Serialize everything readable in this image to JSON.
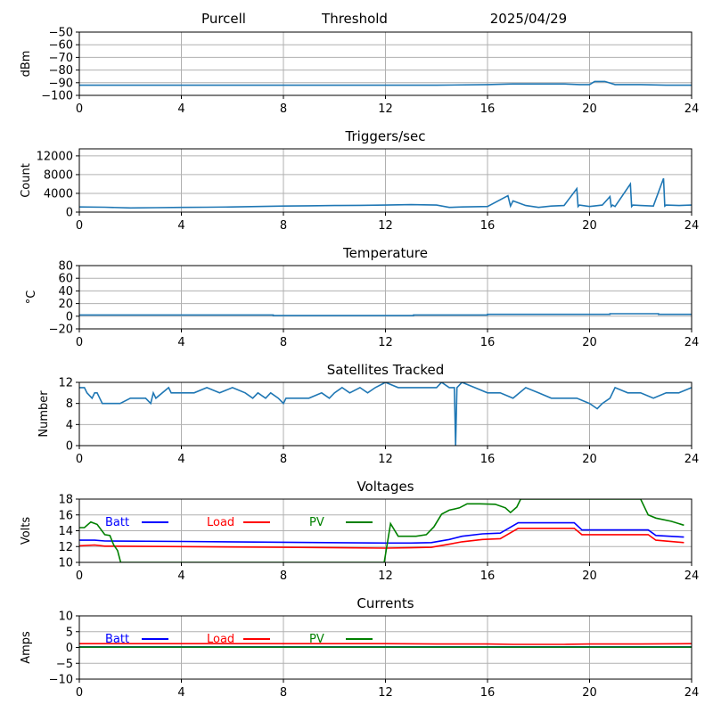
{
  "header": {
    "station": "Purcell",
    "mode": "Threshold",
    "date": "2025/04/29"
  },
  "colors": {
    "series": "#1f77b4",
    "batt": "#0000ff",
    "load": "#ff0000",
    "pv": "#008000",
    "grid": "#b0b0b0"
  },
  "chart_data": [
    {
      "id": "signal",
      "type": "line",
      "title": "",
      "ylabel": "dBm",
      "xlim": [
        0,
        24
      ],
      "xticks": [
        "0",
        "4",
        "8",
        "12",
        "16",
        "20",
        "24"
      ],
      "ylim": [
        -100,
        -50
      ],
      "yticks": [
        "−50",
        "−60",
        "−70",
        "−80",
        "−90",
        "−100"
      ],
      "yticks_values": [
        -50,
        -60,
        -70,
        -80,
        -90,
        -100
      ],
      "grid": true,
      "series": [
        {
          "name": "",
          "color": "#1f77b4",
          "x": [
            0,
            2,
            4,
            6,
            8,
            10,
            12,
            14,
            16,
            17,
            18,
            19,
            19.6,
            20,
            20.2,
            20.6,
            21,
            22,
            23,
            24
          ],
          "y": [
            -92,
            -92,
            -92,
            -92,
            -92,
            -92,
            -92,
            -92,
            -91.5,
            -91,
            -91,
            -91,
            -91.5,
            -91.5,
            -89,
            -89,
            -91.5,
            -91.5,
            -92,
            -92
          ]
        }
      ]
    },
    {
      "id": "triggers",
      "type": "line",
      "title": "Triggers/sec",
      "ylabel": "Count",
      "xlim": [
        0,
        24
      ],
      "xticks": [
        "0",
        "4",
        "8",
        "12",
        "16",
        "20",
        "24"
      ],
      "ylim": [
        0,
        13500
      ],
      "yticks": [
        "12000",
        "8000",
        "4000",
        "0"
      ],
      "yticks_values": [
        12000,
        8000,
        4000,
        0
      ],
      "grid": true,
      "series": [
        {
          "name": "",
          "color": "#1f77b4",
          "x": [
            0,
            1,
            2,
            3,
            4,
            5,
            6,
            7,
            8,
            9,
            10,
            11,
            12,
            13,
            14,
            14.5,
            15,
            16,
            16.8,
            16.9,
            17,
            17.5,
            18,
            18.5,
            19,
            19.5,
            19.55,
            19.6,
            20,
            20.5,
            20.8,
            20.85,
            20.9,
            21,
            21.6,
            21.65,
            21.7,
            22,
            22.5,
            22.9,
            22.95,
            23,
            23.5,
            24
          ],
          "y": [
            1100,
            1050,
            900,
            950,
            1000,
            1050,
            1100,
            1200,
            1300,
            1350,
            1400,
            1450,
            1500,
            1600,
            1500,
            1000,
            1100,
            1200,
            3500,
            1300,
            2400,
            1400,
            1000,
            1300,
            1400,
            5000,
            1200,
            1500,
            1200,
            1500,
            3300,
            1200,
            1500,
            1200,
            6000,
            1200,
            1500,
            1400,
            1300,
            7200,
            1300,
            1500,
            1400,
            1500
          ]
        }
      ]
    },
    {
      "id": "temperature",
      "type": "line",
      "title": "Temperature",
      "ylabel": "°C",
      "xlim": [
        0,
        24
      ],
      "xticks": [
        "0",
        "4",
        "8",
        "12",
        "16",
        "20",
        "24"
      ],
      "ylim": [
        -20,
        80
      ],
      "yticks": [
        "80",
        "60",
        "40",
        "20",
        "0",
        "−20"
      ],
      "yticks_values": [
        80,
        60,
        40,
        20,
        0,
        -20
      ],
      "grid": true,
      "series": [
        {
          "name": "",
          "color": "#1f77b4",
          "x": [
            0,
            7.6,
            7.6,
            13.1,
            13.1,
            16,
            16,
            20.8,
            20.8,
            22.7,
            22.7,
            24
          ],
          "y": [
            2,
            2,
            1,
            1,
            2,
            2,
            3,
            3,
            4,
            4,
            3,
            3
          ]
        }
      ]
    },
    {
      "id": "satellites",
      "type": "line",
      "title": "Satellites Tracked",
      "ylabel": "Number",
      "xlim": [
        0,
        24
      ],
      "xticks": [
        "0",
        "4",
        "8",
        "12",
        "16",
        "20",
        "24"
      ],
      "ylim": [
        0,
        12
      ],
      "yticks": [
        "12",
        "8",
        "4",
        "0"
      ],
      "yticks_values": [
        12,
        8,
        4,
        0
      ],
      "grid": true,
      "series": [
        {
          "name": "",
          "color": "#1f77b4",
          "x": [
            0,
            0.2,
            0.3,
            0.5,
            0.6,
            0.7,
            0.8,
            0.9,
            1.6,
            2.0,
            2.1,
            2.6,
            2.8,
            2.9,
            3.0,
            3.5,
            3.6,
            4.0,
            4.5,
            5.0,
            5.5,
            6.0,
            6.5,
            6.8,
            7.0,
            7.3,
            7.5,
            7.8,
            8.0,
            8.1,
            8.6,
            9.0,
            9.5,
            9.8,
            10.0,
            10.3,
            10.6,
            11.0,
            11.3,
            11.6,
            12.0,
            12.5,
            13.0,
            13.5,
            14.0,
            14.2,
            14.5,
            14.7,
            14.75,
            14.8,
            15.0,
            15.5,
            16.0,
            16.5,
            17.0,
            17.5,
            18.0,
            18.5,
            19.0,
            19.5,
            20.0,
            20.3,
            20.5,
            20.8,
            21.0,
            21.5,
            22.0,
            22.5,
            23.0,
            23.5,
            24.0
          ],
          "y": [
            11,
            11,
            10,
            9,
            10,
            10,
            9,
            8,
            8,
            9,
            9,
            9,
            8,
            10,
            9,
            11,
            10,
            10,
            10,
            11,
            10,
            11,
            10,
            9,
            10,
            9,
            10,
            9,
            8,
            9,
            9,
            9,
            10,
            9,
            10,
            11,
            10,
            11,
            10,
            11,
            12,
            11,
            11,
            11,
            11,
            12,
            11,
            11,
            0,
            11,
            12,
            11,
            10,
            10,
            9,
            11,
            10,
            9,
            9,
            9,
            8,
            7,
            8,
            9,
            11,
            10,
            10,
            9,
            10,
            10,
            11
          ]
        }
      ]
    },
    {
      "id": "voltages",
      "type": "line",
      "title": "Voltages",
      "ylabel": "Volts",
      "xlim": [
        0,
        24
      ],
      "xticks": [
        "0",
        "4",
        "8",
        "12",
        "16",
        "20",
        "24"
      ],
      "ylim": [
        10,
        18
      ],
      "yticks": [
        "18",
        "16",
        "14",
        "12",
        "10"
      ],
      "yticks_values": [
        18,
        16,
        14,
        12,
        10
      ],
      "grid": true,
      "legend": [
        {
          "label": "Batt",
          "color": "#0000ff"
        },
        {
          "label": "Load",
          "color": "#ff0000"
        },
        {
          "label": "PV",
          "color": "#008000"
        }
      ],
      "series": [
        {
          "name": "Batt",
          "color": "#0000ff",
          "x": [
            0,
            0.6,
            1.0,
            4,
            8,
            12,
            13,
            13.8,
            14.5,
            15,
            15.8,
            16.5,
            17.2,
            18,
            19.4,
            19.7,
            20.5,
            22.3,
            22.6,
            23.7
          ],
          "y": [
            12.8,
            12.8,
            12.7,
            12.65,
            12.55,
            12.45,
            12.45,
            12.5,
            12.9,
            13.3,
            13.6,
            13.7,
            15,
            15,
            15,
            14.1,
            14.1,
            14.1,
            13.4,
            13.2
          ]
        },
        {
          "name": "Load",
          "color": "#ff0000",
          "x": [
            0,
            0.6,
            1.0,
            4,
            8,
            12,
            13,
            13.8,
            14.5,
            15,
            15.8,
            16.5,
            17.2,
            18,
            19.4,
            19.7,
            20.5,
            22.3,
            22.6,
            23.7
          ],
          "y": [
            12.1,
            12.2,
            12.05,
            12.0,
            11.9,
            11.8,
            11.85,
            11.9,
            12.3,
            12.6,
            12.9,
            13.0,
            14.3,
            14.3,
            14.3,
            13.5,
            13.5,
            13.5,
            12.8,
            12.5
          ]
        },
        {
          "name": "PV",
          "color": "#008000",
          "x": [
            0,
            0.2,
            0.45,
            0.7,
            1.0,
            1.2,
            1.35,
            1.5,
            1.62,
            11.95,
            12.2,
            12.5,
            12.8,
            13.2,
            13.6,
            13.9,
            14.2,
            14.5,
            14.9,
            15.2,
            15.7,
            16.3,
            16.7,
            16.9,
            17.15,
            17.3,
            22.0,
            22.3,
            22.6,
            23.2,
            23.7
          ],
          "y": [
            14.4,
            14.4,
            15.1,
            14.8,
            13.5,
            13.4,
            12.2,
            11.5,
            10,
            10,
            14.9,
            13.3,
            13.3,
            13.3,
            13.5,
            14.5,
            16.1,
            16.6,
            16.9,
            17.4,
            17.4,
            17.35,
            16.9,
            16.3,
            17,
            18,
            18,
            16.0,
            15.6,
            15.2,
            14.7
          ]
        }
      ]
    },
    {
      "id": "currents",
      "type": "line",
      "title": "Currents",
      "ylabel": "Amps",
      "xlim": [
        0,
        24
      ],
      "xticks": [
        "0",
        "4",
        "8",
        "12",
        "16",
        "20",
        "24"
      ],
      "ylim": [
        -10,
        10
      ],
      "yticks": [
        "10",
        "5",
        "0",
        "−5",
        "−10"
      ],
      "yticks_values": [
        10,
        5,
        0,
        -5,
        -10
      ],
      "grid": true,
      "legend": [
        {
          "label": "Batt",
          "color": "#0000ff"
        },
        {
          "label": "Load",
          "color": "#ff0000"
        },
        {
          "label": "PV",
          "color": "#008000"
        }
      ],
      "series": [
        {
          "name": "Batt",
          "color": "#0000ff",
          "x": [
            0,
            24
          ],
          "y": [
            0.2,
            0.2
          ]
        },
        {
          "name": "Load",
          "color": "#ff0000",
          "x": [
            0,
            12,
            14,
            16,
            17,
            19,
            20,
            22,
            24
          ],
          "y": [
            1.2,
            1.2,
            1.1,
            1.1,
            1.0,
            1.0,
            1.1,
            1.1,
            1.2
          ]
        },
        {
          "name": "PV",
          "color": "#008000",
          "x": [
            0,
            24
          ],
          "y": [
            0.1,
            0.1
          ]
        }
      ]
    }
  ]
}
